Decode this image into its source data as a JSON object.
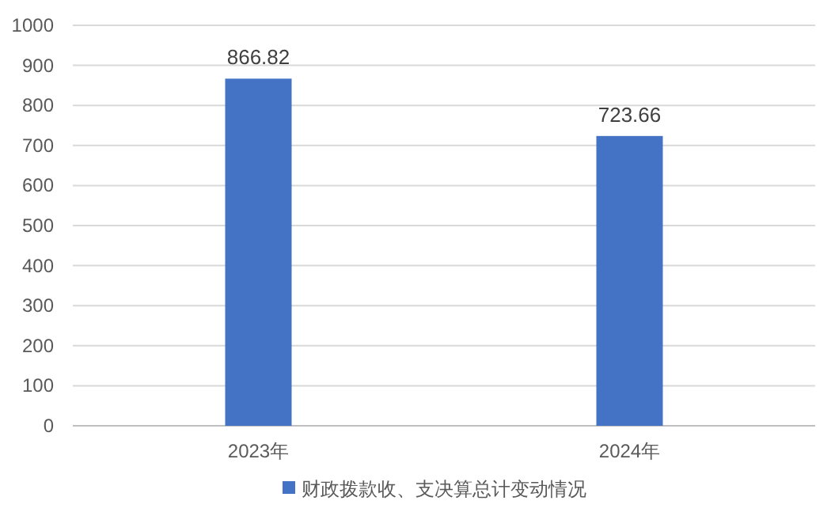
{
  "chart_data": {
    "type": "bar",
    "categories": [
      "2023年",
      "2024年"
    ],
    "series": [
      {
        "name": "财政拨款收、支决算总计变动情况",
        "color": "#4472c4",
        "values": [
          866.82,
          723.66
        ]
      }
    ],
    "ylim": [
      0,
      1000
    ],
    "yticks": [
      0,
      100,
      200,
      300,
      400,
      500,
      600,
      700,
      800,
      900,
      1000
    ],
    "grid": "y",
    "legend": "bottom",
    "data_labels": true
  }
}
